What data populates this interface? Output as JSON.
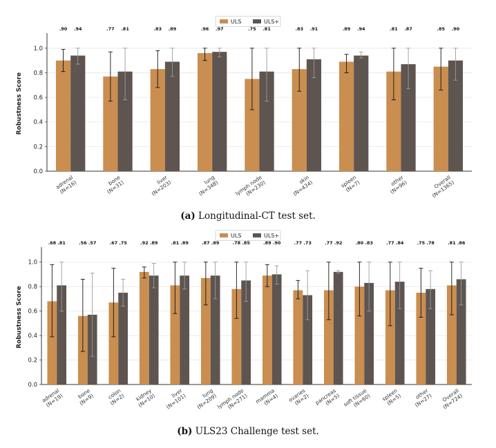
{
  "colors": {
    "uls": "#c98e50",
    "uls_plus": "#5e5551",
    "err_uls": "#111111",
    "err_uls_plus": "#9a9a9a"
  },
  "captions": [
    {
      "label": "(a)",
      "text": "Longitudinal-CT test set."
    },
    {
      "label": "(b)",
      "text": "ULS23 Challenge test set."
    }
  ],
  "chart_data": [
    {
      "type": "bar",
      "ylabel": "Robustness Score",
      "xlabel": "",
      "ylim": [
        0,
        1.1
      ],
      "yticks": [
        "0.0",
        "0.2",
        "0.4",
        "0.6",
        "0.8",
        "1.0"
      ],
      "legend": "top-center",
      "grid": true,
      "categories": [
        "adrenal\n(N=16)",
        "bone\n(N=31)",
        "liver\n(N=203)",
        "lung\n(N=348)",
        "lymph node\n(N=230)",
        "skin\n(N=434)",
        "spleen\n(N=7)",
        "other\n(N=96)",
        "Overall\n(N=1365)"
      ],
      "series": [
        {
          "name": "ULS",
          "values": [
            0.9,
            0.77,
            0.83,
            0.96,
            0.75,
            0.83,
            0.89,
            0.81,
            0.85
          ],
          "err_low": [
            0.81,
            0.57,
            0.68,
            0.9,
            0.5,
            0.65,
            0.8,
            0.58,
            0.66
          ],
          "err_high": [
            0.99,
            0.97,
            0.98,
            1.0,
            1.0,
            1.0,
            0.95,
            1.0,
            1.0
          ],
          "labels": [
            ".90",
            ".77",
            ".83",
            ".96",
            ".75",
            ".83",
            ".89",
            ".81",
            ".85"
          ]
        },
        {
          "name": "ULS+",
          "values": [
            0.94,
            0.81,
            0.89,
            0.97,
            0.81,
            0.91,
            0.94,
            0.87,
            0.9
          ],
          "err_low": [
            0.87,
            0.58,
            0.77,
            0.93,
            0.57,
            0.76,
            0.92,
            0.67,
            0.74
          ],
          "err_high": [
            1.0,
            1.0,
            1.0,
            1.0,
            1.0,
            1.0,
            0.97,
            1.0,
            1.0
          ],
          "labels": [
            ".94",
            ".81",
            ".89",
            ".97",
            ".81",
            ".91",
            ".94",
            ".87",
            ".90"
          ]
        }
      ]
    },
    {
      "type": "bar",
      "ylabel": "Robustness Score",
      "xlabel": "",
      "ylim": [
        0,
        1.1
      ],
      "yticks": [
        "0.0",
        "0.2",
        "0.4",
        "0.6",
        "0.8",
        "1.0"
      ],
      "legend": "top-center",
      "grid": true,
      "categories": [
        "adrenal\n(N=19)",
        "bone\n(N=9)",
        "colon\n(N=2)",
        "kidney\n(N=10)",
        "liver\n(N=101)",
        "lung\n(N=209)",
        "lymph node\n(N=271)",
        "mamma\n(N=4)",
        "ovaries\n(N=2)",
        "pancreas\n(N=5)",
        "soft tissue\n(N=60)",
        "spleen\n(N=5)",
        "other\n(N=27)",
        "Overall\n(N=724)"
      ],
      "series": [
        {
          "name": "ULS",
          "values": [
            0.68,
            0.56,
            0.67,
            0.92,
            0.81,
            0.87,
            0.78,
            0.89,
            0.77,
            0.77,
            0.8,
            0.77,
            0.75,
            0.81
          ],
          "err_low": [
            0.39,
            0.27,
            0.39,
            0.87,
            0.58,
            0.65,
            0.54,
            0.8,
            0.7,
            0.53,
            0.56,
            0.48,
            0.55,
            0.57
          ],
          "err_high": [
            0.98,
            0.86,
            0.95,
            0.96,
            1.0,
            1.0,
            1.0,
            0.98,
            0.85,
            1.0,
            1.0,
            1.0,
            0.95,
            1.0
          ],
          "labels": [
            ".68",
            ".56",
            ".67",
            ".92",
            ".81",
            ".87",
            ".78",
            ".89",
            ".77",
            ".77",
            ".80",
            ".77",
            ".75",
            ".81"
          ]
        },
        {
          "name": "ULS+",
          "values": [
            0.81,
            0.57,
            0.75,
            0.89,
            0.89,
            0.89,
            0.85,
            0.9,
            0.73,
            0.92,
            0.83,
            0.84,
            0.78,
            0.86
          ],
          "err_low": [
            0.6,
            0.23,
            0.64,
            0.79,
            0.78,
            0.7,
            0.68,
            0.82,
            0.53,
            0.91,
            0.6,
            0.62,
            0.62,
            0.65
          ],
          "err_high": [
            1.0,
            0.91,
            0.86,
            0.99,
            1.0,
            1.0,
            1.0,
            0.97,
            0.93,
            0.93,
            1.0,
            1.0,
            0.93,
            1.0
          ],
          "labels": [
            ".81",
            ".57",
            ".75",
            ".89",
            ".89",
            ".89",
            ".85",
            ".90",
            ".73",
            ".92",
            ".83",
            ".84",
            ".78",
            ".86"
          ]
        }
      ]
    }
  ]
}
